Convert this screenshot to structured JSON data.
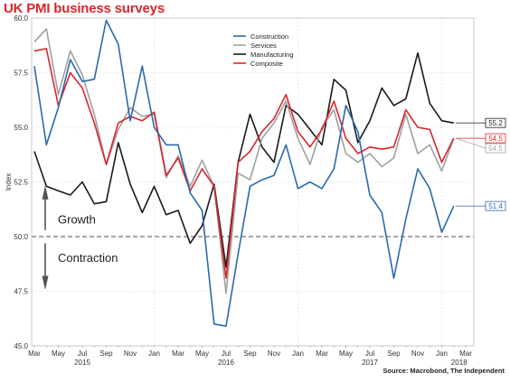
{
  "title": "UK PMI business surveys",
  "source": "Source: Macrobond, The Independent",
  "chart_data": {
    "type": "line",
    "ylabel": "Index",
    "ylim": [
      45,
      60
    ],
    "yticks": [
      45.0,
      47.5,
      50.0,
      52.5,
      55.0,
      57.5,
      60.0
    ],
    "ytick_labels": [
      "45.0",
      "47.5",
      "50.0",
      "52.5",
      "55.0",
      "57.5",
      "60.0"
    ],
    "grid": true,
    "legend_position": "top-center",
    "x_months": [
      "Mar",
      "Apr",
      "May",
      "Jun",
      "Jul",
      "Aug",
      "Sep",
      "Oct",
      "Nov",
      "Dec",
      "Jan",
      "Feb",
      "Mar",
      "Apr",
      "May",
      "Jun",
      "Jul",
      "Aug",
      "Sep",
      "Oct",
      "Nov",
      "Dec",
      "Jan",
      "Feb",
      "Mar",
      "Apr",
      "May",
      "Jun",
      "Jul",
      "Aug",
      "Sep",
      "Oct",
      "Nov",
      "Dec",
      "Jan",
      "Feb",
      "Mar"
    ],
    "x_tick_labels": [
      "Mar",
      "May",
      "Jul",
      "Sep",
      "Nov",
      "Jan",
      "Mar",
      "May",
      "Jul",
      "Sep",
      "Nov",
      "Jan",
      "Mar",
      "May",
      "Jul",
      "Sep",
      "Nov",
      "Jan",
      "Mar"
    ],
    "year_labels": [
      {
        "label": "2015",
        "month_index": 4
      },
      {
        "label": "2016",
        "month_index": 16
      },
      {
        "label": "2017",
        "month_index": 28
      },
      {
        "label": "2018",
        "month_index": 35
      }
    ],
    "reference_line": 50.0,
    "annotations": [
      {
        "text": "Growth",
        "direction": "up"
      },
      {
        "text": "Contraction",
        "direction": "down"
      }
    ],
    "series": [
      {
        "name": "Construction",
        "color": "#2a6aad",
        "values": [
          57.8,
          54.2,
          55.9,
          58.1,
          57.1,
          57.2,
          59.9,
          58.8,
          55.3,
          57.8,
          55.0,
          54.2,
          54.2,
          52.0,
          51.2,
          46.0,
          45.9,
          49.2,
          52.3,
          52.6,
          52.8,
          54.2,
          52.2,
          52.5,
          52.2,
          53.1,
          56.0,
          54.8,
          51.9,
          51.1,
          48.1,
          50.8,
          53.1,
          52.2,
          50.2,
          51.4
        ]
      },
      {
        "name": "Services",
        "color": "#a0a0a0",
        "values": [
          58.9,
          59.5,
          56.5,
          58.5,
          57.4,
          55.6,
          53.3,
          54.9,
          55.9,
          55.5,
          55.6,
          52.7,
          53.7,
          52.3,
          53.5,
          52.3,
          47.4,
          52.9,
          52.6,
          54.5,
          55.2,
          56.2,
          54.5,
          53.3,
          55.0,
          55.8,
          53.8,
          53.4,
          53.8,
          53.2,
          53.6,
          55.6,
          53.8,
          54.2,
          53.0,
          54.5
        ]
      },
      {
        "name": "Manufacturing",
        "color": "#1a1a1a",
        "values": [
          53.9,
          52.3,
          52.1,
          51.9,
          52.5,
          51.5,
          51.6,
          54.3,
          52.4,
          51.1,
          52.3,
          51.0,
          51.2,
          49.7,
          50.5,
          52.4,
          48.6,
          53.4,
          55.6,
          54.1,
          53.4,
          56.0,
          55.6,
          54.9,
          54.2,
          57.2,
          56.7,
          54.3,
          55.3,
          56.8,
          56.0,
          56.3,
          58.4,
          56.1,
          55.3,
          55.2
        ]
      },
      {
        "name": "Composite",
        "color": "#d9262b",
        "values": [
          58.5,
          58.6,
          56.0,
          57.5,
          56.8,
          55.2,
          53.3,
          55.2,
          55.5,
          55.3,
          55.7,
          52.8,
          53.6,
          52.1,
          53.1,
          52.3,
          48.1,
          53.4,
          53.9,
          54.8,
          55.4,
          56.5,
          54.8,
          54.1,
          54.9,
          56.2,
          54.5,
          53.8,
          54.1,
          54.0,
          54.1,
          55.8,
          55.0,
          54.9,
          53.4,
          54.5
        ]
      }
    ],
    "end_labels": [
      {
        "text": "55.2",
        "series": "Manufacturing"
      },
      {
        "text": "54.5",
        "series": "Composite"
      },
      {
        "text": "54.5",
        "series": "Services"
      },
      {
        "text": "51.4",
        "series": "Construction"
      }
    ]
  }
}
